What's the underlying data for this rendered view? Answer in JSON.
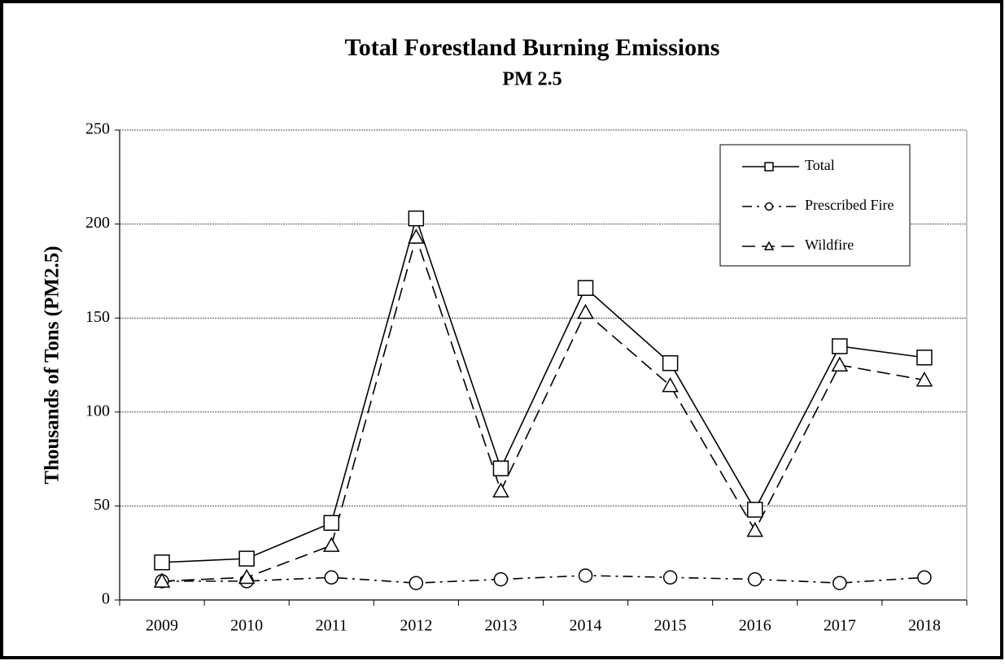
{
  "chart_data": {
    "type": "line",
    "title": "Total Forestland Burning Emissions",
    "subtitle": "PM 2.5",
    "y_label": "Thousands of Tons (PM2.5)",
    "categories": [
      "2009",
      "2010",
      "2011",
      "2012",
      "2013",
      "2014",
      "2015",
      "2016",
      "2017",
      "2018"
    ],
    "series": [
      {
        "name": "Total",
        "color": "#000000",
        "marker": "square",
        "dash": "solid",
        "values": [
          20,
          22,
          41,
          203,
          70,
          166,
          126,
          48,
          135,
          129
        ]
      },
      {
        "name": "Prescribed Fire",
        "color": "#000000",
        "marker": "circle",
        "dash": "dashdot",
        "values": [
          10,
          10,
          12,
          9,
          11,
          13,
          12,
          11,
          9,
          12
        ]
      },
      {
        "name": "Wildfire",
        "color": "#000000",
        "marker": "triangle",
        "dash": "dashed",
        "values": [
          10,
          12,
          29,
          193,
          58,
          153,
          114,
          37,
          125,
          117
        ]
      }
    ],
    "ylim": [
      0,
      250
    ],
    "yticks": [
      0,
      50,
      100,
      150,
      200,
      250
    ],
    "grid": true,
    "legend": "upper right"
  }
}
